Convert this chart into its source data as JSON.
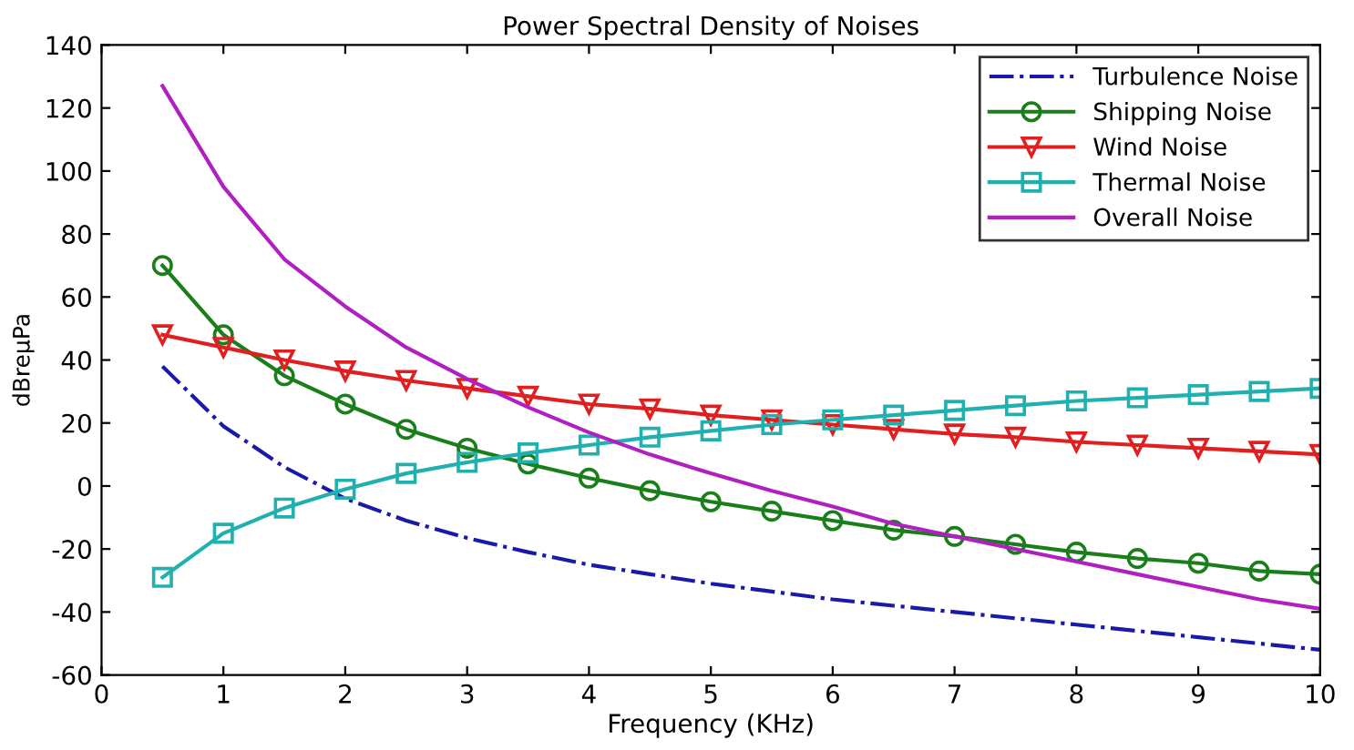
{
  "chart_data": {
    "type": "line",
    "title": "Power Spectral Density of Noises",
    "xlabel": "Frequency (KHz)",
    "ylabel": "dBreμPa",
    "x": [
      0.5,
      1,
      1.5,
      2,
      2.5,
      3,
      3.5,
      4,
      4.5,
      5,
      5.5,
      6,
      6.5,
      7,
      7.5,
      8,
      8.5,
      9,
      9.5,
      10
    ],
    "series": [
      {
        "name": "Turbulence Noise",
        "color": "#1a1aa8",
        "line_style": "dashdot",
        "marker": "none",
        "values": [
          38,
          19,
          6,
          -4,
          -11,
          -16.5,
          -21,
          -25,
          -28,
          -31,
          -33.5,
          -36,
          -38,
          -40,
          -42,
          -44,
          -46,
          -48,
          -50,
          -52
        ]
      },
      {
        "name": "Shipping Noise",
        "color": "#1a7f1a",
        "line_style": "solid",
        "marker": "circle",
        "values": [
          70,
          48,
          35,
          26,
          18,
          12,
          7,
          2.5,
          -1.5,
          -5,
          -8,
          -11,
          -14,
          -16,
          -18.5,
          -21,
          -23,
          -24.5,
          -27,
          -28
        ]
      },
      {
        "name": "Wind Noise",
        "color": "#e02020",
        "line_style": "solid",
        "marker": "triangle",
        "values": [
          48,
          44,
          40,
          36.5,
          33.5,
          31,
          28.5,
          26,
          24.5,
          22.5,
          21,
          19.5,
          18,
          16.5,
          15.5,
          14,
          13,
          12,
          11,
          10
        ]
      },
      {
        "name": "Thermal Noise",
        "color": "#20b0b0",
        "line_style": "solid",
        "marker": "square",
        "values": [
          -29,
          -15,
          -7,
          -1,
          4,
          7.5,
          10.5,
          13,
          15.5,
          17.5,
          19.5,
          21,
          22.5,
          24,
          25.5,
          27,
          28,
          29,
          30,
          31
        ]
      },
      {
        "name": "Overall Noise",
        "color": "#b020c0",
        "line_style": "solid",
        "marker": "none",
        "values": [
          127,
          95,
          72,
          57,
          44,
          34,
          25,
          17,
          10,
          4,
          -1.5,
          -6.5,
          -12,
          -16,
          -20,
          -24,
          -28,
          -32,
          -36,
          -39
        ]
      }
    ],
    "xlim": [
      0,
      10
    ],
    "xticks": [
      0,
      1,
      2,
      3,
      4,
      5,
      6,
      7,
      8,
      9,
      10
    ],
    "ylim": [
      -60,
      140
    ],
    "yticks": [
      -60,
      -40,
      -20,
      0,
      20,
      40,
      60,
      80,
      100,
      120,
      140
    ],
    "grid": false,
    "legend": "top right"
  }
}
